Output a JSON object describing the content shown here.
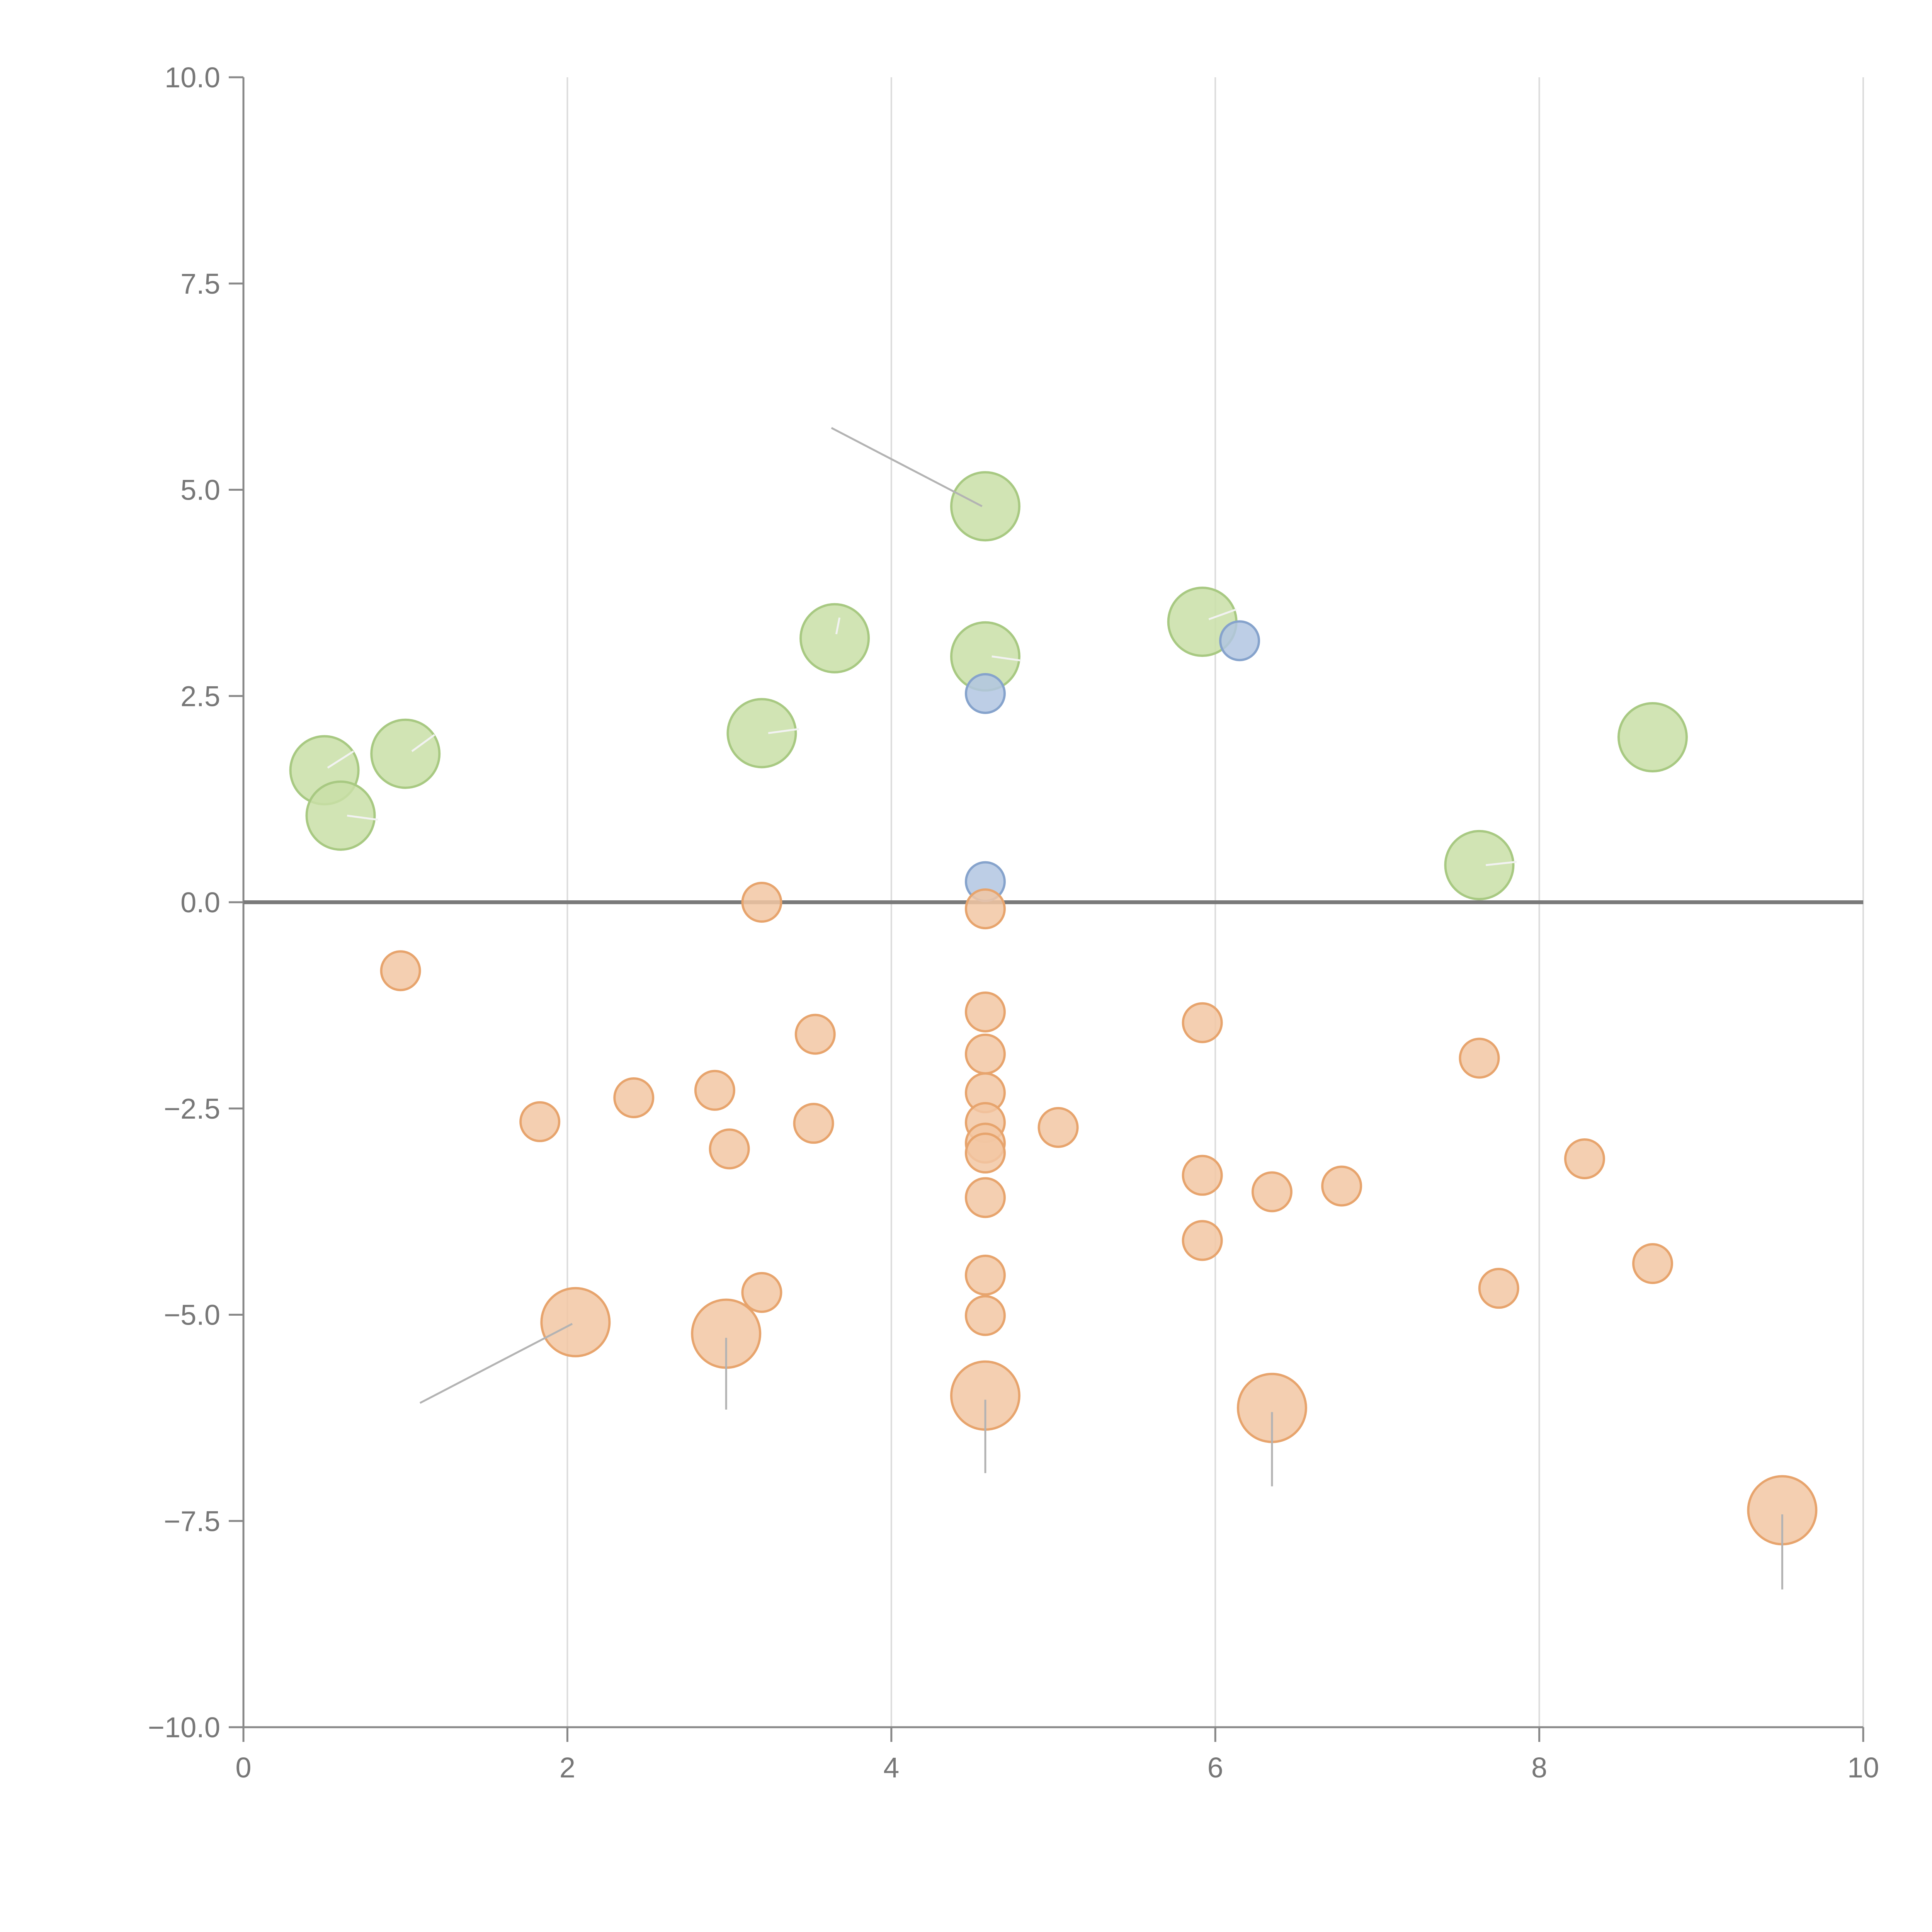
{
  "chart_data": {
    "type": "scatter",
    "title": "",
    "xlabel": "",
    "ylabel": "",
    "xlim": [
      0,
      10
    ],
    "ylim": [
      -10,
      10
    ],
    "xticks": [
      "0",
      "2",
      "4",
      "6",
      "8",
      "10"
    ],
    "xtick_values": [
      0,
      2,
      4,
      6,
      8,
      10
    ],
    "yticks": [
      "10.0",
      "7.5",
      "5.0",
      "2.5",
      "0.0",
      "−2.5",
      "−5.0",
      "−7.5",
      "−10.0"
    ],
    "ytick_values": [
      10,
      7.5,
      5,
      2.5,
      0,
      -2.5,
      -5,
      -7.5,
      -10
    ],
    "grid": "vertical",
    "zero_line": true,
    "colors": {
      "green_fill": "#c9dfa7",
      "green_stroke": "#a8c982",
      "orange_fill": "#f2c7a3",
      "orange_stroke": "#e7a46d",
      "blue_fill": "#b2c6e2",
      "blue_stroke": "#86a3cc",
      "connector": "#b3b3b3",
      "connector_light": "#f2f2f2"
    },
    "series": [
      {
        "name": "green",
        "size": "large",
        "points": [
          {
            "x": 0.5,
            "y": 1.6
          },
          {
            "x": 0.6,
            "y": 1.05
          },
          {
            "x": 1.0,
            "y": 1.8
          },
          {
            "x": 3.2,
            "y": 2.05
          },
          {
            "x": 3.65,
            "y": 3.2
          },
          {
            "x": 4.58,
            "y": 4.8
          },
          {
            "x": 4.58,
            "y": 2.98
          },
          {
            "x": 5.92,
            "y": 3.4
          },
          {
            "x": 7.63,
            "y": 0.45
          },
          {
            "x": 8.7,
            "y": 2.0
          }
        ]
      },
      {
        "name": "blue",
        "size": "small",
        "points": [
          {
            "x": 4.58,
            "y": 2.53
          },
          {
            "x": 4.58,
            "y": 0.25
          },
          {
            "x": 6.15,
            "y": 3.17
          }
        ]
      },
      {
        "name": "orange-small",
        "size": "small",
        "points": [
          {
            "x": 3.2,
            "y": 0.0
          },
          {
            "x": 0.97,
            "y": -0.83
          },
          {
            "x": 1.83,
            "y": -2.66
          },
          {
            "x": 2.41,
            "y": -2.37
          },
          {
            "x": 2.91,
            "y": -2.28
          },
          {
            "x": 3.0,
            "y": -2.99
          },
          {
            "x": 3.53,
            "y": -1.6
          },
          {
            "x": 3.52,
            "y": -2.68
          },
          {
            "x": 3.2,
            "y": -4.73
          },
          {
            "x": 4.58,
            "y": -0.08
          },
          {
            "x": 4.58,
            "y": -1.33
          },
          {
            "x": 4.58,
            "y": -1.84
          },
          {
            "x": 4.58,
            "y": -2.31
          },
          {
            "x": 4.58,
            "y": -2.67
          },
          {
            "x": 4.58,
            "y": -2.92
          },
          {
            "x": 4.58,
            "y": -3.04
          },
          {
            "x": 4.58,
            "y": -3.58
          },
          {
            "x": 4.58,
            "y": -4.52
          },
          {
            "x": 4.58,
            "y": -5.01
          },
          {
            "x": 5.03,
            "y": -2.73
          },
          {
            "x": 5.92,
            "y": -1.46
          },
          {
            "x": 5.92,
            "y": -3.31
          },
          {
            "x": 5.92,
            "y": -4.1
          },
          {
            "x": 6.35,
            "y": -3.51
          },
          {
            "x": 6.78,
            "y": -3.44
          },
          {
            "x": 7.63,
            "y": -1.89
          },
          {
            "x": 7.75,
            "y": -4.68
          },
          {
            "x": 8.28,
            "y": -3.11
          },
          {
            "x": 8.7,
            "y": -4.38
          }
        ]
      },
      {
        "name": "orange-large",
        "size": "large",
        "points": [
          {
            "x": 2.05,
            "y": -5.09
          },
          {
            "x": 2.98,
            "y": -5.23
          },
          {
            "x": 4.58,
            "y": -5.98
          },
          {
            "x": 6.35,
            "y": -6.13
          },
          {
            "x": 9.5,
            "y": -7.37
          }
        ]
      }
    ],
    "leader_lines": [
      {
        "x1": 3.63,
        "y1": 5.75,
        "x2": 4.56,
        "y2": 4.8,
        "tone": "dark"
      },
      {
        "x1": 2.03,
        "y1": -5.11,
        "x2": 1.09,
        "y2": -6.07,
        "tone": "dark"
      },
      {
        "x1": 2.98,
        "y1": -5.28,
        "x2": 2.98,
        "y2": -6.15,
        "tone": "dark"
      },
      {
        "x1": 4.58,
        "y1": -6.03,
        "x2": 4.58,
        "y2": -6.92,
        "tone": "dark"
      },
      {
        "x1": 6.35,
        "y1": -6.18,
        "x2": 6.35,
        "y2": -7.08,
        "tone": "dark"
      },
      {
        "x1": 9.5,
        "y1": -7.42,
        "x2": 9.5,
        "y2": -8.33,
        "tone": "dark"
      },
      {
        "x1": 0.52,
        "y1": 1.63,
        "x2": 0.68,
        "y2": 1.83,
        "tone": "light"
      },
      {
        "x1": 0.64,
        "y1": 1.05,
        "x2": 0.83,
        "y2": 1.0,
        "tone": "light"
      },
      {
        "x1": 1.04,
        "y1": 1.83,
        "x2": 1.18,
        "y2": 2.03,
        "tone": "light"
      },
      {
        "x1": 3.24,
        "y1": 2.05,
        "x2": 3.43,
        "y2": 2.1,
        "tone": "light"
      },
      {
        "x1": 3.66,
        "y1": 3.25,
        "x2": 3.68,
        "y2": 3.45,
        "tone": "light"
      },
      {
        "x1": 4.62,
        "y1": 2.98,
        "x2": 4.8,
        "y2": 2.93,
        "tone": "light"
      },
      {
        "x1": 5.96,
        "y1": 3.43,
        "x2": 6.13,
        "y2": 3.55,
        "tone": "light"
      },
      {
        "x1": 7.67,
        "y1": 0.45,
        "x2": 7.86,
        "y2": 0.49,
        "tone": "light"
      }
    ]
  }
}
